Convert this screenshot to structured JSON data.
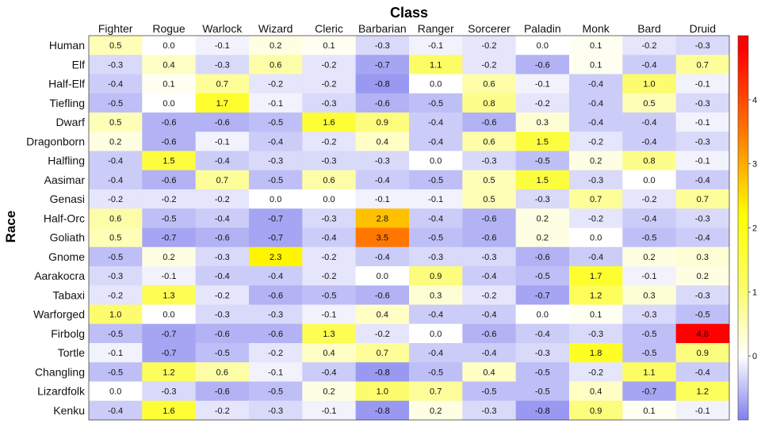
{
  "chart_data": {
    "type": "heatmap",
    "title": "Class",
    "xlabel": "",
    "ylabel": "Race",
    "x_position": "top",
    "categories_x": [
      "Fighter",
      "Rogue",
      "Warlock",
      "Wizard",
      "Cleric",
      "Barbarian",
      "Ranger",
      "Sorcerer",
      "Paladin",
      "Monk",
      "Bard",
      "Druid"
    ],
    "categories_y": [
      "Human",
      "Elf",
      "Half-Elf",
      "Tiefling",
      "Dwarf",
      "Dragonborn",
      "Halfling",
      "Aasimar",
      "Genasi",
      "Half-Orc",
      "Goliath",
      "Gnome",
      "Aarakocra",
      "Tabaxi",
      "Warforged",
      "Firbolg",
      "Tortle",
      "Changling",
      "Lizardfolk",
      "Kenku"
    ],
    "values": [
      [
        0.5,
        0.0,
        -0.1,
        0.2,
        0.1,
        -0.3,
        -0.1,
        -0.2,
        0.0,
        0.1,
        -0.2,
        -0.3
      ],
      [
        -0.3,
        0.4,
        -0.3,
        0.6,
        -0.2,
        -0.7,
        1.1,
        -0.2,
        -0.6,
        0.1,
        -0.4,
        0.7
      ],
      [
        -0.4,
        0.1,
        0.7,
        -0.2,
        -0.2,
        -0.8,
        0.0,
        0.6,
        -0.1,
        -0.4,
        1.0,
        -0.1
      ],
      [
        -0.5,
        0.0,
        1.7,
        -0.1,
        -0.3,
        -0.6,
        -0.5,
        0.8,
        -0.2,
        -0.4,
        0.5,
        -0.3
      ],
      [
        0.5,
        -0.6,
        -0.6,
        -0.5,
        1.6,
        0.9,
        -0.4,
        -0.6,
        0.3,
        -0.4,
        -0.4,
        -0.1
      ],
      [
        0.2,
        -0.6,
        -0.1,
        -0.4,
        -0.2,
        0.4,
        -0.4,
        0.6,
        1.5,
        -0.2,
        -0.4,
        -0.3
      ],
      [
        -0.4,
        1.5,
        -0.4,
        -0.3,
        -0.3,
        -0.3,
        0.0,
        -0.3,
        -0.5,
        0.2,
        0.8,
        -0.1
      ],
      [
        -0.4,
        -0.6,
        0.7,
        -0.5,
        0.6,
        -0.4,
        -0.5,
        0.5,
        1.5,
        -0.3,
        0.0,
        -0.4
      ],
      [
        -0.2,
        -0.2,
        -0.2,
        0.0,
        0.0,
        -0.1,
        -0.1,
        0.5,
        -0.3,
        0.7,
        -0.2,
        0.7
      ],
      [
        0.6,
        -0.5,
        -0.4,
        -0.7,
        -0.3,
        2.8,
        -0.4,
        -0.6,
        0.2,
        -0.2,
        -0.4,
        -0.3
      ],
      [
        0.5,
        -0.7,
        -0.6,
        -0.7,
        -0.4,
        3.5,
        -0.5,
        -0.6,
        0.2,
        0.0,
        -0.5,
        -0.4
      ],
      [
        -0.5,
        0.2,
        -0.3,
        2.3,
        -0.2,
        -0.4,
        -0.3,
        -0.3,
        -0.6,
        -0.4,
        0.2,
        0.3
      ],
      [
        -0.3,
        -0.1,
        -0.4,
        -0.4,
        -0.2,
        0.0,
        0.9,
        -0.4,
        -0.5,
        1.7,
        -0.1,
        0.2
      ],
      [
        -0.2,
        1.3,
        -0.2,
        -0.6,
        -0.5,
        -0.6,
        0.3,
        -0.2,
        -0.7,
        1.2,
        0.3,
        -0.3
      ],
      [
        1.0,
        0.0,
        -0.3,
        -0.3,
        -0.1,
        0.4,
        -0.4,
        -0.4,
        0.0,
        0.1,
        -0.3,
        -0.5
      ],
      [
        -0.5,
        -0.7,
        -0.6,
        -0.6,
        1.3,
        -0.2,
        0.0,
        -0.6,
        -0.4,
        -0.3,
        -0.5,
        4.8
      ],
      [
        -0.1,
        -0.7,
        -0.5,
        -0.2,
        0.4,
        0.7,
        -0.4,
        -0.4,
        -0.3,
        1.8,
        -0.5,
        0.9
      ],
      [
        -0.5,
        1.2,
        0.6,
        -0.1,
        -0.4,
        -0.8,
        -0.5,
        0.4,
        -0.5,
        -0.2,
        1.1,
        -0.4
      ],
      [
        0.0,
        -0.3,
        -0.6,
        -0.5,
        0.2,
        1.0,
        0.7,
        -0.5,
        -0.5,
        0.4,
        -0.7,
        1.2
      ],
      [
        -0.4,
        1.6,
        -0.2,
        -0.3,
        -0.1,
        -0.8,
        0.2,
        -0.3,
        -0.8,
        0.9,
        0.1,
        -0.1
      ]
    ],
    "value_format": "one decimal",
    "colorbar": {
      "ticks": [
        0,
        1,
        2,
        3,
        4
      ],
      "range": [
        -1,
        5
      ],
      "colormap": [
        {
          "value": -1.0,
          "color": "#7f7fef"
        },
        {
          "value": 0.0,
          "color": "#ffffff"
        },
        {
          "value": 1.0,
          "color": "#fcfc6e"
        },
        {
          "value": 2.2,
          "color": "#ffff00"
        },
        {
          "value": 3.5,
          "color": "#ff7700"
        },
        {
          "value": 4.8,
          "color": "#ff0000"
        }
      ]
    },
    "grid": false
  }
}
